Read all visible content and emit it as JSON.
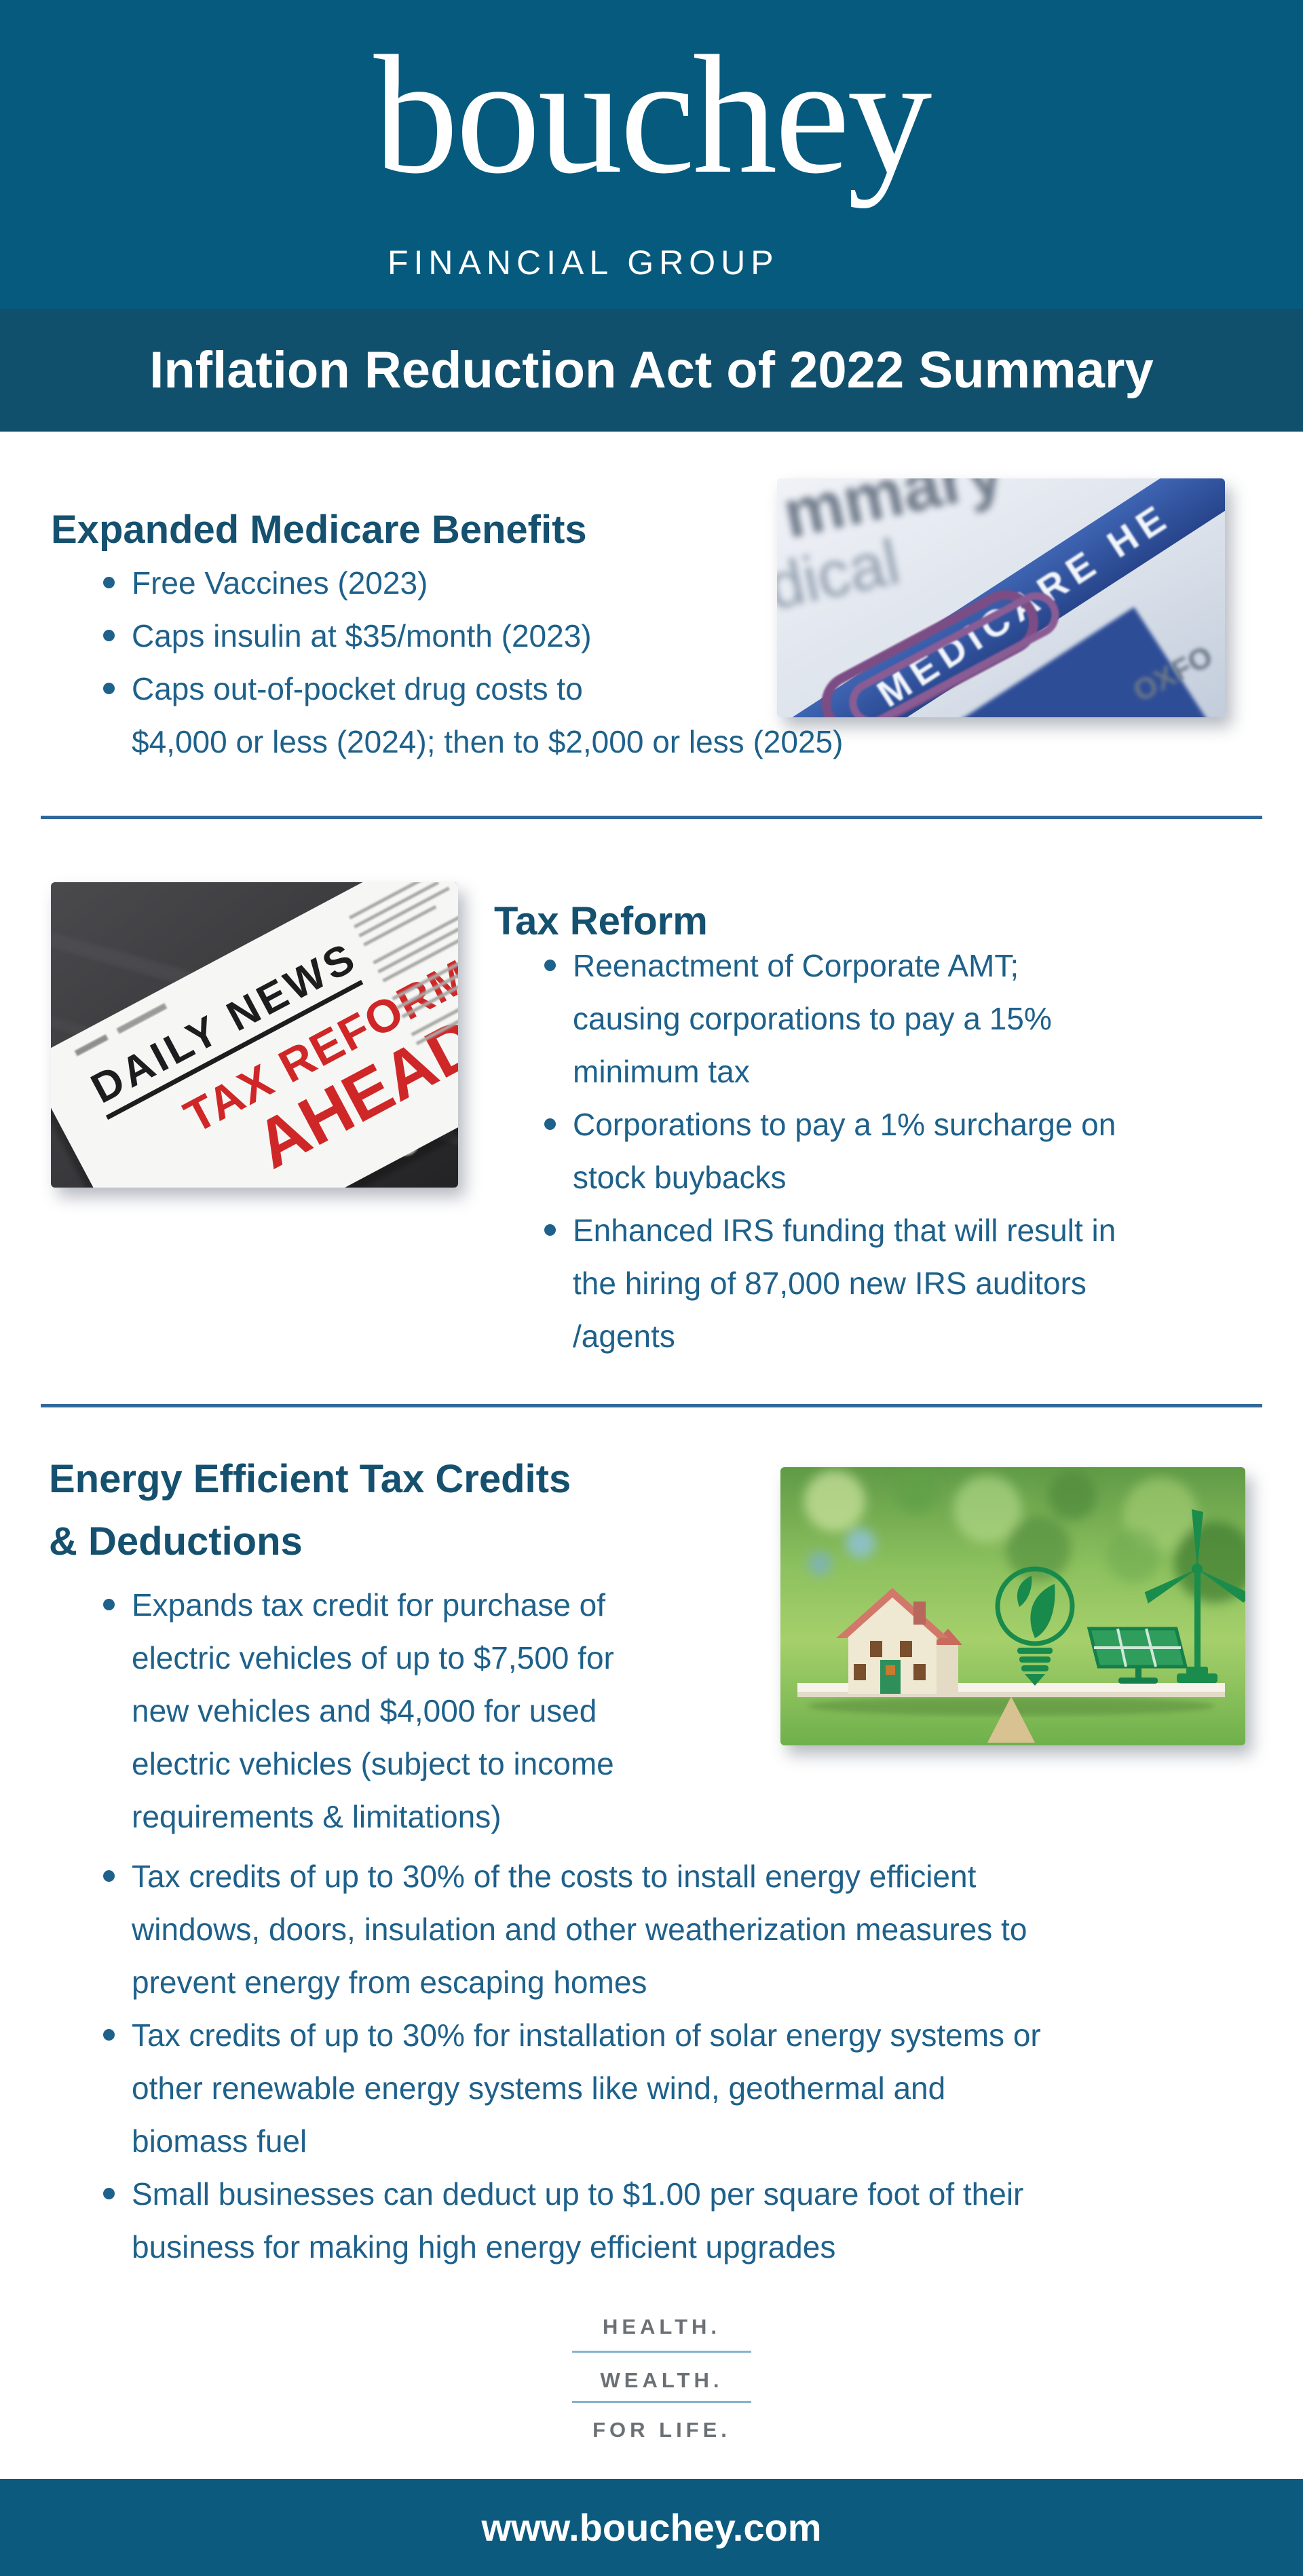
{
  "brand": {
    "logo": "bouchey",
    "tagline": "FINANCIAL GROUP"
  },
  "banner": {
    "title": "Inflation Reduction Act of 2022 Summary"
  },
  "sections": {
    "medicare": {
      "heading": "Expanded Medicare Benefits",
      "bullets": [
        [
          "Free Vaccines (2023)"
        ],
        [
          "Caps insulin at $35/month (2023)"
        ],
        [
          "Caps out-of-pocket drug costs to",
          "$4,000 or less (2024); then to $2,000 or less (2025)"
        ]
      ],
      "photo": {
        "word_top": "mmary",
        "word_mid": "dical",
        "label": "MEDICARE HE",
        "word_corner": "OXFO"
      }
    },
    "tax_reform": {
      "heading": "Tax Reform",
      "bullets": [
        [
          "Reenactment of Corporate AMT;",
          "causing corporations to pay a 15%",
          "minimum tax"
        ],
        [
          "Corporations to pay a 1% surcharge on",
          "stock buybacks"
        ],
        [
          "Enhanced IRS funding that will result in",
          "the hiring of 87,000 new IRS auditors",
          "/agents"
        ]
      ],
      "photo": {
        "masthead": "DAILY NEWS",
        "headline": "TAX REFORM",
        "headline2": "AHEAD!"
      }
    },
    "energy": {
      "heading_line1": "Energy Efficient Tax Credits",
      "heading_line2": "& Deductions",
      "bullets_narrow": [
        [
          "Expands tax credit for purchase of",
          "electric vehicles of up to $7,500 for",
          "new vehicles and $4,000 for used",
          "electric vehicles (subject to income",
          "requirements & limitations)"
        ]
      ],
      "bullets_wide": [
        [
          "Tax credits of up to 30% of the costs to install energy efficient",
          "windows, doors, insulation and other weatherization measures to",
          "prevent energy from escaping homes"
        ],
        [
          "Tax credits of up to 30% for installation of solar energy systems or",
          "other renewable energy systems like wind, geothermal and",
          "biomass fuel"
        ],
        [
          "Small businesses can deduct up to $1.00 per square foot of their",
          "business for making high energy efficient upgrades"
        ]
      ]
    }
  },
  "motto": {
    "line1": "HEALTH.",
    "line2": "WEALTH.",
    "line3": "FOR LIFE."
  },
  "footer": {
    "url": "www.bouchey.com"
  },
  "colors": {
    "header_bg": "#055A7E",
    "banner_bg": "#11506C",
    "heading_text": "#15506F",
    "body_text": "#1E618B",
    "divider": "#31689A",
    "motto_text": "#6B7075",
    "motto_line": "#86B3CE",
    "footer_bg": "#0C5A7D",
    "headline_red": "#CF2727"
  }
}
